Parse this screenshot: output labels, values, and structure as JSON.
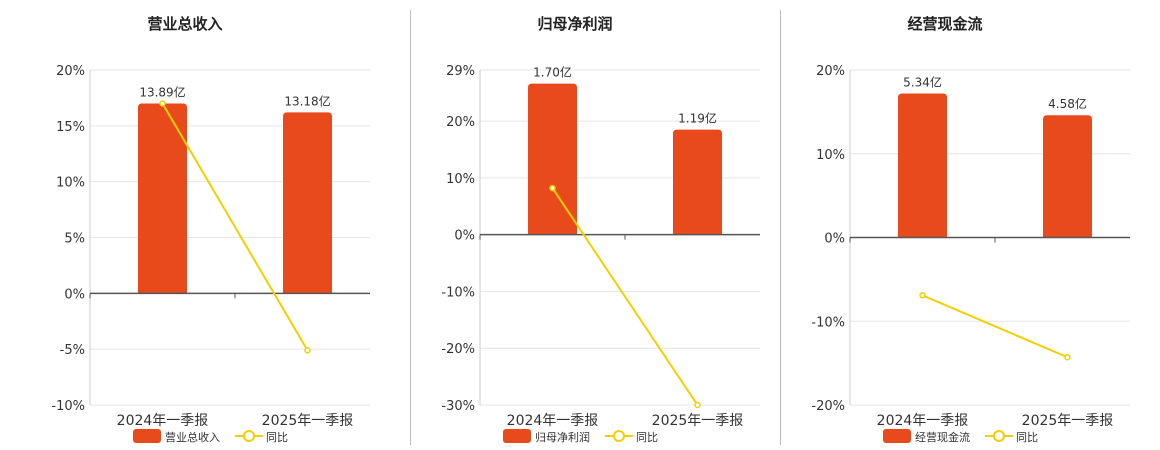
{
  "legend_yoy_label": "同比",
  "colors": {
    "bar": "#e84a1c",
    "line": "#f2cf00",
    "axis": "#555555",
    "grid": "#e6e6e6"
  },
  "chart_data": [
    {
      "type": "bar",
      "title": "营业总收入",
      "categories": [
        "2024年一季报",
        "2025年一季报"
      ],
      "bar_labels": [
        "13.89亿",
        "13.18亿"
      ],
      "series": [
        {
          "name": "营业总收入",
          "type": "bar",
          "values": [
            17.0,
            16.2
          ]
        },
        {
          "name": "同比",
          "type": "line",
          "values": [
            17.0,
            -5.1
          ]
        }
      ],
      "yticks": [
        20,
        15,
        10,
        5,
        0,
        -5,
        -10
      ],
      "ytick_labels": [
        "20%",
        "15%",
        "10%",
        "5%",
        "0%",
        "-5%",
        "-10%"
      ],
      "ylim": [
        -10,
        20
      ]
    },
    {
      "type": "bar",
      "title": "归母净利润",
      "categories": [
        "2024年一季报",
        "2025年一季报"
      ],
      "bar_labels": [
        "1.70亿",
        "1.19亿"
      ],
      "series": [
        {
          "name": "归母净利润",
          "type": "bar",
          "values": [
            26.6,
            18.5
          ]
        },
        {
          "name": "同比",
          "type": "line",
          "values": [
            8.2,
            -30.0
          ]
        }
      ],
      "yticks": [
        29,
        20,
        10,
        0,
        -10,
        -20,
        -30
      ],
      "ytick_labels": [
        "29%",
        "20%",
        "10%",
        "0%",
        "-10%",
        "-20%",
        "-30%"
      ],
      "ylim": [
        -30,
        29
      ]
    },
    {
      "type": "bar",
      "title": "经营现金流",
      "categories": [
        "2024年一季报",
        "2025年一季报"
      ],
      "bar_labels": [
        "5.34亿",
        "4.58亿"
      ],
      "series": [
        {
          "name": "经营现金流",
          "type": "bar",
          "values": [
            17.2,
            14.6
          ]
        },
        {
          "name": "同比",
          "type": "line",
          "values": [
            -6.9,
            -14.3
          ]
        }
      ],
      "yticks": [
        20,
        10,
        0,
        -10,
        -20
      ],
      "ytick_labels": [
        "20%",
        "10%",
        "0%",
        "-10%",
        "-20%"
      ],
      "ylim": [
        -20,
        20
      ]
    }
  ]
}
